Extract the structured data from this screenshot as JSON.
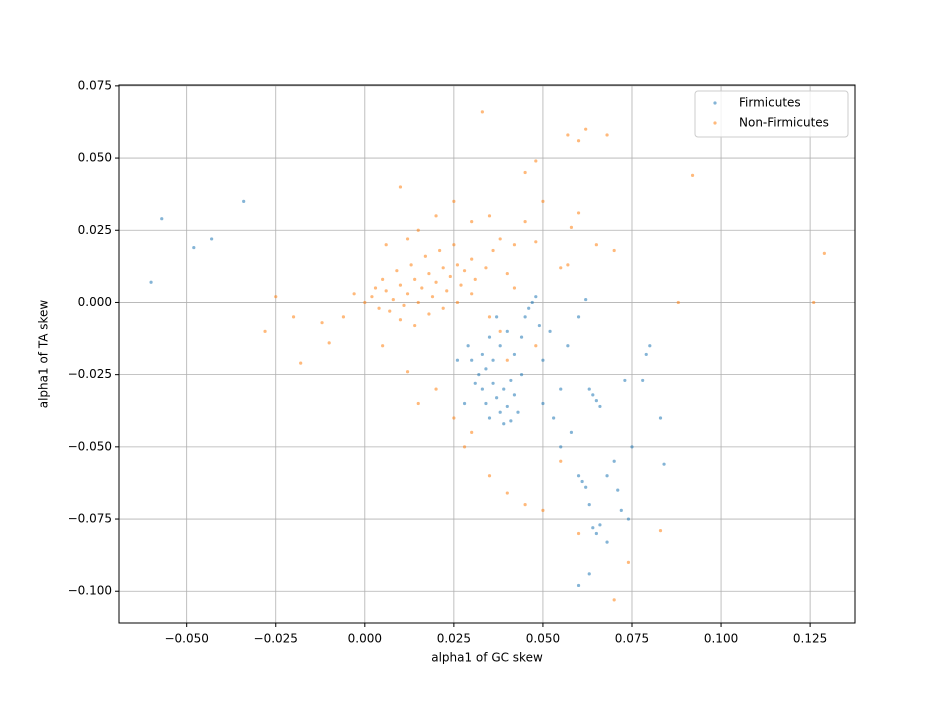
{
  "chart_data": {
    "type": "scatter",
    "x_label": "alpha1 of GC skew",
    "y_label": "alpha1 of TA skew",
    "xlim": [
      -0.069,
      0.1376
    ],
    "ylim": [
      -0.111,
      0.0753
    ],
    "xticks": [
      {
        "value": -0.05,
        "label": "−0.050"
      },
      {
        "value": -0.025,
        "label": "−0.025"
      },
      {
        "value": 0,
        "label": "0.000"
      },
      {
        "value": 0.025,
        "label": "0.025"
      },
      {
        "value": 0.05,
        "label": "0.050"
      },
      {
        "value": 0.075,
        "label": "0.075"
      },
      {
        "value": 0.1,
        "label": "0.100"
      },
      {
        "value": 0.125,
        "label": "0.125"
      }
    ],
    "yticks": [
      {
        "value": -0.1,
        "label": "−0.100"
      },
      {
        "value": -0.075,
        "label": "−0.075"
      },
      {
        "value": -0.05,
        "label": "−0.050"
      },
      {
        "value": -0.025,
        "label": "−0.025"
      },
      {
        "value": 0,
        "label": "0.000"
      },
      {
        "value": 0.025,
        "label": "0.025"
      },
      {
        "value": 0.05,
        "label": "0.050"
      },
      {
        "value": 0.075,
        "label": "0.075"
      }
    ],
    "grid": true,
    "legend": "upper right",
    "series": [
      {
        "name": "Firmicutes",
        "color": "#1f77b4",
        "x": [
          -0.057,
          -0.048,
          -0.043,
          -0.034,
          -0.06,
          0.03,
          0.032,
          0.033,
          0.034,
          0.035,
          0.036,
          0.037,
          0.038,
          0.039,
          0.04,
          0.041,
          0.042,
          0.036,
          0.038,
          0.04,
          0.037,
          0.042,
          0.044,
          0.035,
          0.033,
          0.031,
          0.034,
          0.039,
          0.043,
          0.041,
          0.045,
          0.047,
          0.048,
          0.046,
          0.049,
          0.044,
          0.05,
          0.052,
          0.028,
          0.029,
          0.026,
          0.055,
          0.064,
          0.065,
          0.066,
          0.063,
          0.06,
          0.061,
          0.062,
          0.064,
          0.065,
          0.066,
          0.068,
          0.06,
          0.063,
          0.072,
          0.074,
          0.075,
          0.07,
          0.08,
          0.079,
          0.083,
          0.084,
          0.078,
          0.073,
          0.058,
          0.055,
          0.068,
          0.071,
          0.063,
          0.053,
          0.05,
          0.057,
          0.06,
          0.062
        ],
        "values": [
          0.029,
          0.019,
          0.022,
          0.035,
          0.007,
          -0.02,
          -0.025,
          -0.03,
          -0.035,
          -0.04,
          -0.028,
          -0.033,
          -0.038,
          -0.03,
          -0.036,
          -0.041,
          -0.032,
          -0.02,
          -0.015,
          -0.01,
          -0.005,
          -0.018,
          -0.025,
          -0.012,
          -0.018,
          -0.028,
          -0.023,
          -0.042,
          -0.038,
          -0.027,
          -0.005,
          0.0,
          0.002,
          -0.002,
          -0.008,
          -0.012,
          -0.02,
          -0.01,
          -0.035,
          -0.015,
          -0.02,
          -0.03,
          -0.032,
          -0.034,
          -0.036,
          -0.03,
          -0.06,
          -0.062,
          -0.064,
          -0.078,
          -0.08,
          -0.077,
          -0.083,
          -0.098,
          -0.094,
          -0.072,
          -0.075,
          -0.05,
          -0.055,
          -0.015,
          -0.018,
          -0.04,
          -0.056,
          -0.027,
          -0.027,
          -0.045,
          -0.05,
          -0.06,
          -0.065,
          -0.07,
          -0.04,
          -0.035,
          -0.015,
          -0.005,
          0.001
        ]
      },
      {
        "name": "Non-Firmicutes",
        "color": "#ff7f0e",
        "x": [
          0.0,
          0.002,
          0.004,
          0.006,
          0.008,
          0.01,
          0.012,
          0.014,
          0.016,
          0.018,
          0.02,
          0.022,
          0.024,
          0.026,
          0.028,
          0.03,
          0.003,
          0.007,
          0.011,
          0.015,
          0.019,
          0.023,
          0.027,
          0.031,
          0.005,
          0.009,
          0.013,
          0.017,
          0.021,
          0.025,
          0.01,
          0.014,
          0.018,
          0.022,
          0.026,
          0.03,
          0.034,
          0.036,
          0.038,
          0.04,
          0.042,
          0.045,
          0.048,
          0.05,
          0.045,
          0.048,
          0.02,
          0.015,
          0.01,
          0.025,
          0.03,
          0.035,
          0.006,
          0.012,
          0.033,
          0.057,
          0.06,
          0.062,
          0.068,
          0.06,
          0.058,
          0.057,
          0.055,
          0.065,
          0.092,
          0.129,
          0.126,
          0.088,
          0.07,
          -0.028,
          -0.025,
          -0.02,
          -0.018,
          -0.012,
          -0.006,
          -0.01,
          -0.003,
          0.005,
          0.012,
          0.015,
          0.02,
          0.025,
          0.028,
          0.03,
          0.035,
          0.04,
          0.045,
          0.05,
          0.055,
          0.06,
          0.07,
          0.074,
          0.083,
          0.035,
          0.04,
          0.038,
          0.042,
          0.048
        ],
        "values": [
          0.0,
          0.002,
          -0.002,
          0.004,
          0.001,
          0.006,
          0.003,
          0.008,
          0.005,
          0.01,
          0.007,
          0.012,
          0.009,
          0.013,
          0.011,
          0.015,
          0.005,
          -0.003,
          -0.001,
          0.0,
          0.002,
          0.004,
          0.006,
          0.008,
          0.008,
          0.011,
          0.013,
          0.016,
          0.018,
          0.02,
          -0.006,
          -0.008,
          -0.004,
          -0.002,
          0.0,
          0.003,
          0.012,
          0.018,
          0.022,
          0.01,
          0.02,
          0.028,
          0.021,
          0.035,
          0.045,
          0.049,
          0.03,
          0.025,
          0.04,
          0.035,
          0.028,
          0.03,
          0.02,
          0.022,
          0.066,
          0.058,
          0.056,
          0.06,
          0.058,
          0.031,
          0.026,
          0.013,
          0.012,
          0.02,
          0.044,
          0.017,
          0.0,
          0.0,
          0.018,
          -0.01,
          0.002,
          -0.005,
          -0.021,
          -0.007,
          -0.005,
          -0.014,
          0.003,
          -0.015,
          -0.024,
          -0.035,
          -0.03,
          -0.04,
          -0.05,
          -0.045,
          -0.06,
          -0.066,
          -0.07,
          -0.072,
          -0.055,
          -0.08,
          -0.103,
          -0.09,
          -0.079,
          -0.005,
          -0.02,
          -0.01,
          0.005,
          -0.015
        ]
      }
    ]
  }
}
